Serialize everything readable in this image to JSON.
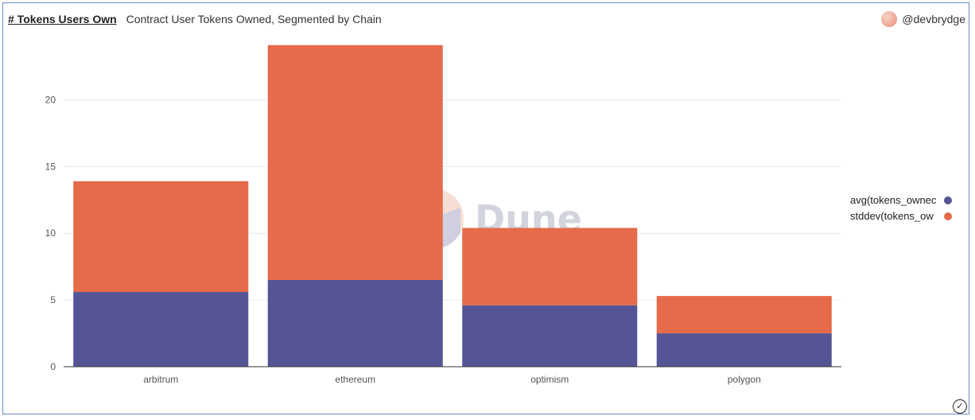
{
  "header": {
    "title": "# Tokens Users Own",
    "subtitle": "Contract User Tokens Owned, Segmented by Chain"
  },
  "author": {
    "handle": "@devbrydge"
  },
  "watermark": {
    "text": "Dune"
  },
  "status_icon": "check-circle-icon",
  "chart_data": {
    "type": "bar",
    "stacked": true,
    "categories": [
      "arbitrum",
      "ethereum",
      "optimism",
      "polygon"
    ],
    "series": [
      {
        "name": "avg(tokens_ownec",
        "color": "#555595",
        "values": [
          5.6,
          6.5,
          4.6,
          2.5
        ]
      },
      {
        "name": "stddev(tokens_ow",
        "color": "#e56b4b",
        "values": [
          8.3,
          17.6,
          5.8,
          2.8
        ]
      }
    ],
    "yticks": [
      0,
      5,
      10,
      15,
      20
    ],
    "ylim": [
      0,
      24.5
    ],
    "grid": true,
    "legend_position": "right"
  }
}
